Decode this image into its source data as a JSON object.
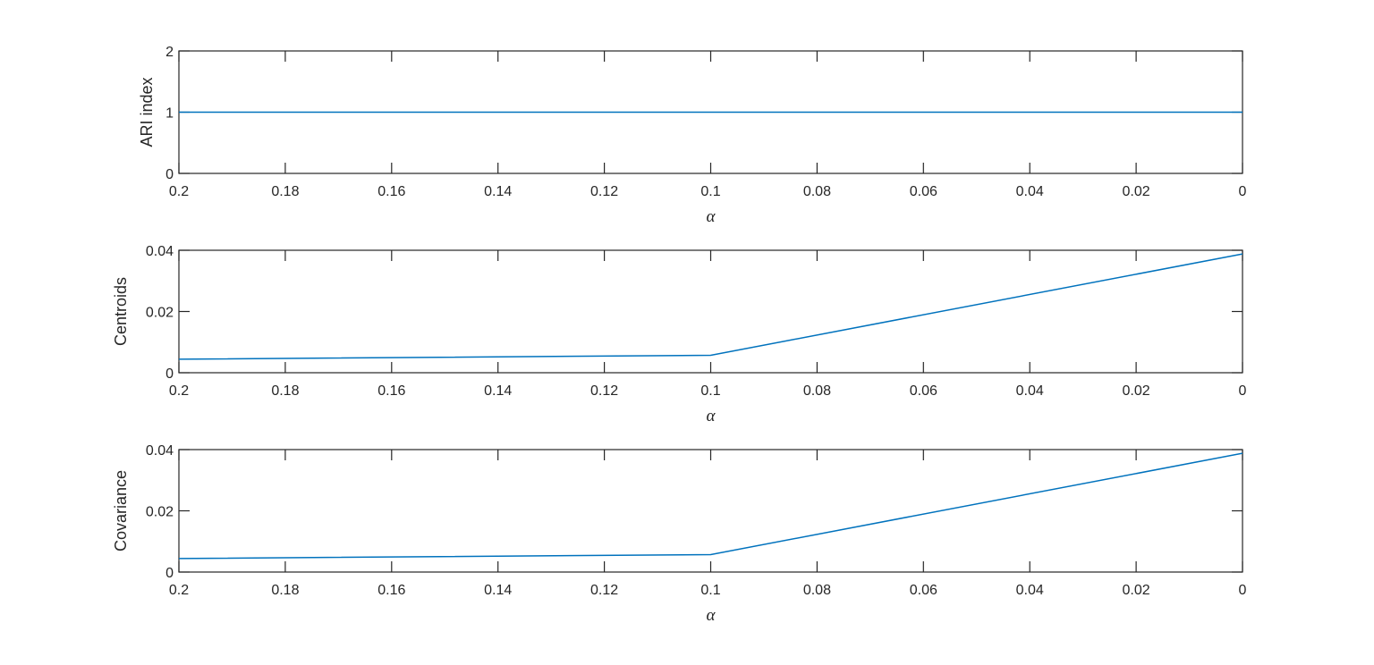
{
  "chart_data": [
    {
      "type": "line",
      "title": "",
      "xlabel": "α",
      "ylabel": "ARI index",
      "x": [
        0.2,
        0.1,
        0
      ],
      "series": [
        {
          "name": "ARI index",
          "values": [
            1,
            1,
            1
          ],
          "color": "#0072BD"
        }
      ],
      "xlim": [
        0.2,
        0
      ],
      "xdir": "reverse",
      "ylim": [
        0,
        2
      ],
      "xticks": [
        "0.2",
        "0.18",
        "0.16",
        "0.14",
        "0.12",
        "0.1",
        "0.08",
        "0.06",
        "0.04",
        "0.02",
        "0"
      ],
      "yticks": [
        "0",
        "1",
        "2"
      ],
      "grid": false,
      "legend": null
    },
    {
      "type": "line",
      "title": "",
      "xlabel": "α",
      "ylabel": "Centroids",
      "x": [
        0.2,
        0.1,
        0
      ],
      "series": [
        {
          "name": "Centroids",
          "values": [
            0.0044,
            0.0057,
            0.0388
          ],
          "color": "#0072BD"
        }
      ],
      "xlim": [
        0.2,
        0
      ],
      "xdir": "reverse",
      "ylim": [
        0,
        0.04
      ],
      "xticks": [
        "0.2",
        "0.18",
        "0.16",
        "0.14",
        "0.12",
        "0.1",
        "0.08",
        "0.06",
        "0.04",
        "0.02",
        "0"
      ],
      "yticks": [
        "0",
        "0.02",
        "0.04"
      ],
      "grid": false,
      "legend": null
    },
    {
      "type": "line",
      "title": "",
      "xlabel": "α",
      "ylabel": "Covariance",
      "x": [
        0.2,
        0.1,
        0
      ],
      "series": [
        {
          "name": "Covariance",
          "values": [
            0.0044,
            0.0057,
            0.0388
          ],
          "color": "#0072BD"
        }
      ],
      "xlim": [
        0.2,
        0
      ],
      "xdir": "reverse",
      "ylim": [
        0,
        0.04
      ],
      "xticks": [
        "0.2",
        "0.18",
        "0.16",
        "0.14",
        "0.12",
        "0.1",
        "0.08",
        "0.06",
        "0.04",
        "0.02",
        "0"
      ],
      "yticks": [
        "0",
        "0.02",
        "0.04"
      ],
      "grid": false,
      "legend": null
    }
  ]
}
